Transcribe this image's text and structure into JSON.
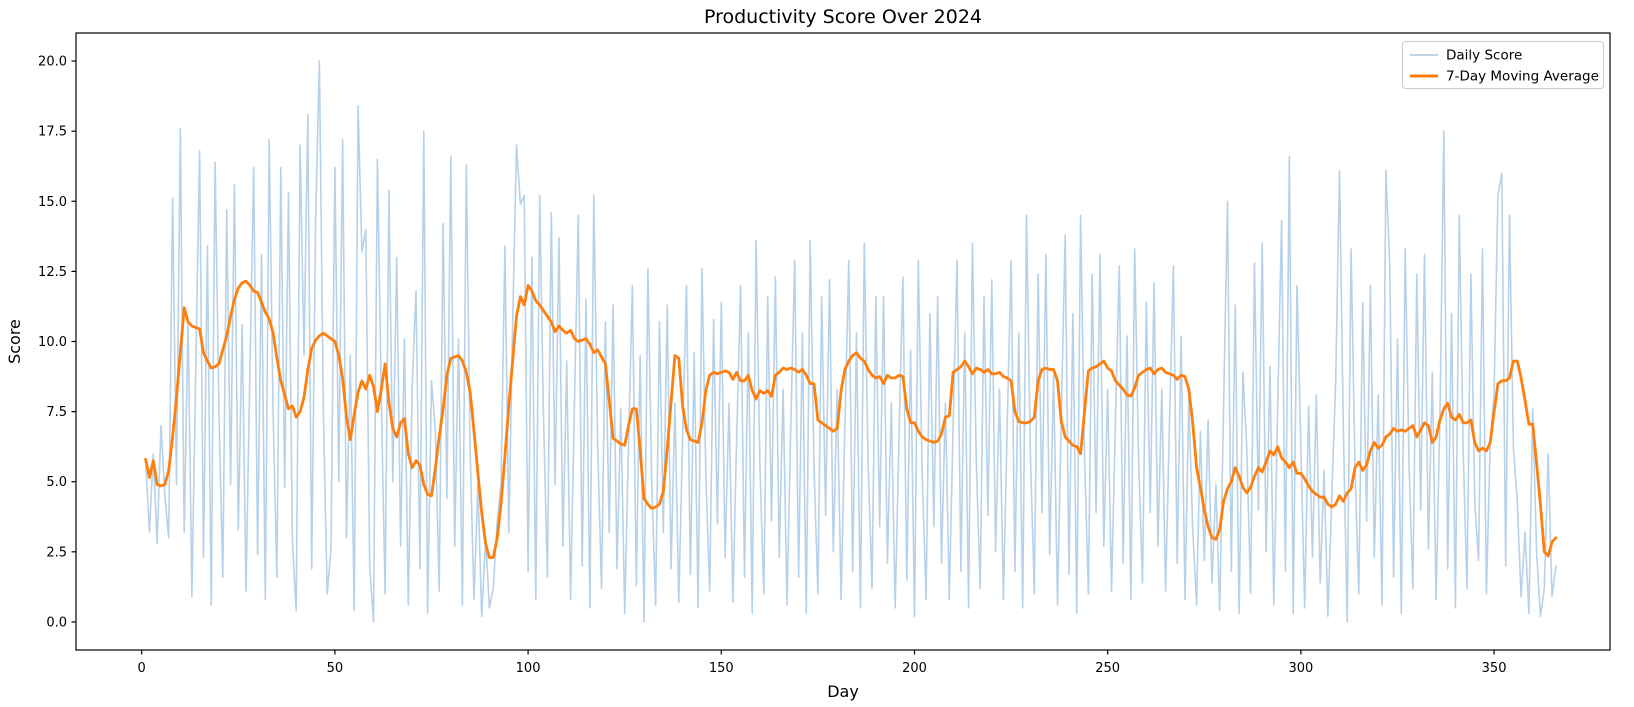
{
  "figure": {
    "title": "Productivity Score Over 2024"
  },
  "chart_data": {
    "type": "line",
    "title": "Productivity Score Over 2024",
    "xlabel": "Day",
    "ylabel": "Score",
    "xlim": [
      -17,
      380
    ],
    "ylim": [
      -1,
      21
    ],
    "x_ticks": [
      0,
      50,
      100,
      150,
      200,
      250,
      300,
      350
    ],
    "y_ticks": [
      0.0,
      2.5,
      5.0,
      7.5,
      10.0,
      12.5,
      15.0,
      17.5,
      20.0
    ],
    "grid": false,
    "legend_position": "upper right",
    "x_start_day": 1,
    "background_color": "#ffffff",
    "spine_color": "#000000",
    "series": [
      {
        "name": "Daily Score",
        "color": "#b7d1e8",
        "linewidth": 1.6,
        "values": [
          5.8,
          3.2,
          6.0,
          2.8,
          7.0,
          4.5,
          3.0,
          15.1,
          4.9,
          17.6,
          3.2,
          10.8,
          0.9,
          9.1,
          16.8,
          2.3,
          13.4,
          0.6,
          16.4,
          7.4,
          1.6,
          14.7,
          4.9,
          15.6,
          3.3,
          10.6,
          1.1,
          9.0,
          16.2,
          2.4,
          13.1,
          0.8,
          17.2,
          7.4,
          1.6,
          16.2,
          4.8,
          15.3,
          2.9,
          0.4,
          17.0,
          9.5,
          18.1,
          1.9,
          14.3,
          20.0,
          7.6,
          1.0,
          2.6,
          16.2,
          5.0,
          17.2,
          3.0,
          9.5,
          0.4,
          18.4,
          13.2,
          14.0,
          2.0,
          0.0,
          16.5,
          8.0,
          1.0,
          15.4,
          5.0,
          13.0,
          2.7,
          10.1,
          0.6,
          8.4,
          11.8,
          1.9,
          17.5,
          0.3,
          8.6,
          6.8,
          1.1,
          14.2,
          4.4,
          16.6,
          2.7,
          10.1,
          0.6,
          16.3,
          6.2,
          0.8,
          4.9,
          0.2,
          3.0,
          0.5,
          1.2,
          3.6,
          4.9,
          13.4,
          3.2,
          10.5,
          17.0,
          14.9,
          15.2,
          1.8,
          13.0,
          0.8,
          15.2,
          7.3,
          1.6,
          14.6,
          4.9,
          13.7,
          2.7,
          9.3,
          0.8,
          7.9,
          14.5,
          2.0,
          11.5,
          0.5,
          15.2,
          6.4,
          1.2,
          10.7,
          3.2,
          11.3,
          1.9,
          7.6,
          0.3,
          6.3,
          12.0,
          1.3,
          9.5,
          0.0,
          12.6,
          5.0,
          0.6,
          10.7,
          3.2,
          11.3,
          1.9,
          7.8,
          0.7,
          6.6,
          12.0,
          1.7,
          9.6,
          0.5,
          12.6,
          5.3,
          1.1,
          10.8,
          3.5,
          11.4,
          2.3,
          7.8,
          0.7,
          6.6,
          12.0,
          1.6,
          10.3,
          0.3,
          13.6,
          5.6,
          1.0,
          11.6,
          3.6,
          12.3,
          2.3,
          8.3,
          0.6,
          7.0,
          12.9,
          1.6,
          10.3,
          0.3,
          13.6,
          5.6,
          1.0,
          11.6,
          3.8,
          12.2,
          2.5,
          8.3,
          0.8,
          7.0,
          12.9,
          1.8,
          10.3,
          0.5,
          13.5,
          5.7,
          1.2,
          11.6,
          3.4,
          11.6,
          2.1,
          7.8,
          0.5,
          6.6,
          12.3,
          1.5,
          9.7,
          0.2,
          12.9,
          5.3,
          0.8,
          11.0,
          3.4,
          11.6,
          2.1,
          7.8,
          0.8,
          7.0,
          12.9,
          1.8,
          10.3,
          0.5,
          13.5,
          5.7,
          1.2,
          11.6,
          3.8,
          12.2,
          2.5,
          8.3,
          0.8,
          7.0,
          12.9,
          1.8,
          10.3,
          0.5,
          14.5,
          6.0,
          1.0,
          12.4,
          3.9,
          13.1,
          2.4,
          8.8,
          0.6,
          7.4,
          13.8,
          1.7,
          11.0,
          0.3,
          14.5,
          6.0,
          1.0,
          12.4,
          3.9,
          13.1,
          2.7,
          8.3,
          1.1,
          7.1,
          12.7,
          2.1,
          10.2,
          0.8,
          13.3,
          5.8,
          1.4,
          11.4,
          3.9,
          12.1,
          2.7,
          8.3,
          1.1,
          7.1,
          12.7,
          2.1,
          10.2,
          0.8,
          8.0,
          3.3,
          0.6,
          6.8,
          2.2,
          7.2,
          1.4,
          4.9,
          0.4,
          7.7,
          15.0,
          1.8,
          11.3,
          0.3,
          8.9,
          6.2,
          1.0,
          12.8,
          4.0,
          13.5,
          2.5,
          9.1,
          0.6,
          7.7,
          14.3,
          1.8,
          16.6,
          0.3,
          12.0,
          6.2,
          0.5,
          7.7,
          2.3,
          8.1,
          1.4,
          5.4,
          0.2,
          4.5,
          8.6,
          16.1,
          6.8,
          0.0,
          13.3,
          5.5,
          1.0,
          11.4,
          3.6,
          12.0,
          2.3,
          8.1,
          0.6,
          16.1,
          12.7,
          1.6,
          10.1,
          0.3,
          13.3,
          5.5,
          1.2,
          12.4,
          4.0,
          13.1,
          2.6,
          8.9,
          0.8,
          7.5,
          17.5,
          1.9,
          11.0,
          0.5,
          14.5,
          6.1,
          1.2,
          12.4,
          4.2,
          2.2,
          13.3,
          1.0,
          6.4,
          8.2,
          15.2,
          16.0,
          2.0,
          14.5,
          6.2,
          4.3,
          0.9,
          3.2,
          0.3,
          7.6,
          2.5,
          0.2,
          1.2,
          6.0,
          0.9,
          2.0
        ]
      },
      {
        "name": "7-Day Moving Average",
        "color": "#ff7f0e",
        "linewidth": 2.8,
        "values": [
          5.8,
          5.15,
          5.75,
          4.9,
          4.85,
          4.9,
          5.4,
          6.6,
          8.0,
          9.6,
          11.2,
          10.7,
          10.55,
          10.5,
          10.45,
          9.6,
          9.3,
          9.05,
          9.1,
          9.2,
          9.7,
          10.2,
          10.9,
          11.5,
          11.9,
          12.1,
          12.15,
          12.0,
          11.8,
          11.75,
          11.4,
          11.05,
          10.8,
          10.3,
          9.4,
          8.6,
          8.1,
          7.6,
          7.7,
          7.3,
          7.5,
          8.0,
          9.0,
          9.75,
          10.05,
          10.2,
          10.3,
          10.2,
          10.1,
          10.0,
          9.5,
          8.7,
          7.3,
          6.5,
          7.4,
          8.2,
          8.6,
          8.3,
          8.8,
          8.4,
          7.5,
          8.3,
          9.2,
          7.8,
          6.9,
          6.6,
          7.1,
          7.25,
          6.0,
          5.5,
          5.75,
          5.6,
          4.9,
          4.55,
          4.5,
          5.5,
          6.6,
          7.6,
          8.8,
          9.4,
          9.45,
          9.5,
          9.3,
          8.9,
          8.2,
          6.8,
          5.3,
          3.9,
          2.8,
          2.3,
          2.3,
          3.0,
          4.2,
          5.9,
          7.7,
          9.3,
          10.9,
          11.6,
          11.3,
          12.0,
          11.8,
          11.45,
          11.3,
          11.1,
          10.9,
          10.7,
          10.35,
          10.55,
          10.4,
          10.3,
          10.4,
          10.1,
          10.0,
          10.05,
          10.1,
          9.9,
          9.6,
          9.7,
          9.45,
          9.2,
          7.9,
          6.55,
          6.45,
          6.35,
          6.3,
          7.0,
          7.6,
          7.6,
          6.15,
          4.4,
          4.2,
          4.05,
          4.1,
          4.2,
          4.65,
          6.15,
          7.85,
          9.5,
          9.4,
          7.7,
          6.85,
          6.5,
          6.45,
          6.4,
          7.1,
          8.25,
          8.8,
          8.9,
          8.85,
          8.9,
          8.95,
          8.9,
          8.65,
          8.9,
          8.6,
          8.6,
          8.8,
          8.25,
          7.95,
          8.25,
          8.15,
          8.25,
          8.05,
          8.8,
          8.9,
          9.05,
          9.0,
          9.05,
          9.0,
          8.9,
          9.0,
          8.8,
          8.5,
          8.5,
          7.2,
          7.1,
          7.0,
          6.9,
          6.8,
          6.9,
          8.25,
          9.0,
          9.3,
          9.5,
          9.6,
          9.4,
          9.3,
          9.0,
          8.8,
          8.7,
          8.75,
          8.5,
          8.8,
          8.7,
          8.7,
          8.8,
          8.75,
          7.6,
          7.1,
          7.1,
          6.8,
          6.6,
          6.5,
          6.45,
          6.4,
          6.45,
          6.7,
          7.3,
          7.35,
          8.9,
          9.0,
          9.1,
          9.3,
          9.1,
          8.85,
          9.05,
          9.0,
          8.9,
          9.0,
          8.85,
          8.85,
          8.9,
          8.75,
          8.7,
          8.6,
          7.5,
          7.15,
          7.1,
          7.1,
          7.15,
          7.3,
          8.6,
          9.0,
          9.05,
          9.0,
          9.0,
          8.6,
          7.15,
          6.6,
          6.45,
          6.3,
          6.25,
          6.0,
          7.5,
          8.95,
          9.05,
          9.1,
          9.2,
          9.3,
          9.05,
          8.95,
          8.6,
          8.45,
          8.3,
          8.1,
          8.05,
          8.35,
          8.8,
          8.9,
          9.0,
          9.05,
          8.85,
          9.0,
          9.05,
          8.9,
          8.85,
          8.8,
          8.65,
          8.8,
          8.75,
          8.3,
          7.1,
          5.5,
          4.8,
          4.0,
          3.4,
          3.0,
          2.95,
          3.3,
          4.3,
          4.75,
          5.0,
          5.5,
          5.2,
          4.8,
          4.6,
          4.8,
          5.2,
          5.5,
          5.35,
          5.7,
          6.1,
          5.95,
          6.25,
          5.85,
          5.7,
          5.5,
          5.7,
          5.3,
          5.3,
          5.1,
          4.85,
          4.65,
          4.55,
          4.45,
          4.45,
          4.2,
          4.1,
          4.2,
          4.5,
          4.3,
          4.6,
          4.75,
          5.5,
          5.7,
          5.4,
          5.6,
          6.1,
          6.4,
          6.2,
          6.3,
          6.6,
          6.7,
          6.9,
          6.8,
          6.85,
          6.8,
          6.9,
          7.0,
          6.6,
          6.85,
          7.1,
          7.0,
          6.4,
          6.6,
          7.2,
          7.6,
          7.8,
          7.3,
          7.2,
          7.4,
          7.1,
          7.1,
          7.2,
          6.4,
          6.1,
          6.2,
          6.1,
          6.4,
          7.5,
          8.5,
          8.6,
          8.6,
          8.7,
          9.3,
          9.3,
          8.7,
          7.9,
          7.05,
          7.05,
          5.65,
          4.2,
          2.5,
          2.35,
          2.85,
          3.0
        ]
      }
    ]
  }
}
